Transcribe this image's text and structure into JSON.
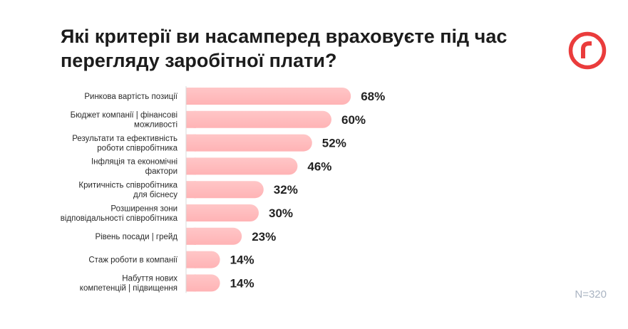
{
  "title": "Які критерії ви насамперед враховуєте під час перегляду заробітної плати?",
  "sample_size": "N=320",
  "logo": {
    "icon": "r-logo-icon",
    "color": "#ea3c3c"
  },
  "colors": {
    "bar": "#ffb3b5",
    "bar_edge": "#ffc6c7",
    "axis": "#d9d9d9"
  },
  "chart_data": {
    "type": "bar",
    "orientation": "horizontal",
    "title": "Які критерії ви насамперед враховуєте під час перегляду заробітної плати?",
    "categories": [
      [
        "Ринкова вартість позиції"
      ],
      [
        "Бюджет компанії | фінансові",
        "можливості"
      ],
      [
        "Результати та ефективність",
        "роботи співробітника"
      ],
      [
        "Інфляція та економічні",
        "фактори"
      ],
      [
        "Критичність співробітника",
        "для біснесу"
      ],
      [
        "Розширення зони",
        "відповідальності співробітника"
      ],
      [
        "Рівень посади | грейд"
      ],
      [
        "Стаж роботи в компанії"
      ],
      [
        "Набуття нових",
        "компетенцій | підвищення"
      ]
    ],
    "values": [
      68,
      60,
      52,
      46,
      32,
      30,
      23,
      14,
      14
    ],
    "value_labels": [
      "68%",
      "60%",
      "52%",
      "46%",
      "32%",
      "30%",
      "23%",
      "14%",
      "14%"
    ],
    "unit": "%",
    "xlim": [
      0,
      100
    ]
  }
}
